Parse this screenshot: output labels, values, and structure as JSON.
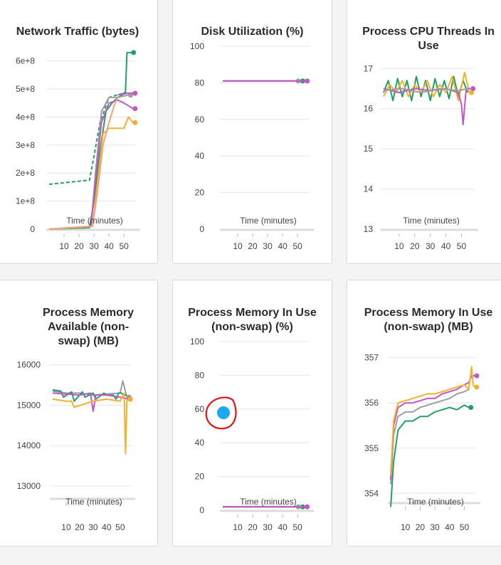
{
  "colors": {
    "green": "#22a063",
    "gray": "#9e9e9e",
    "purple": "#c357c7",
    "orange": "#f0b22e",
    "salmon": "#f2a47c",
    "grid": "#e6e6e6",
    "annotation_dot": "#1aa9f0",
    "annotation_circle": "#e1141b"
  },
  "chart_data": [
    {
      "type": "line",
      "title": "Network Traffic (bytes)",
      "xlabel": "Time (minutes)",
      "ylabel": "",
      "xlim": [
        0,
        58
      ],
      "ylim": [
        0,
        650000000
      ],
      "xticks": [
        10,
        20,
        30,
        40,
        50
      ],
      "yticks": [
        0,
        100000000,
        200000000,
        300000000,
        400000000,
        500000000,
        600000000
      ],
      "ytick_labels": [
        "0",
        "1e+8",
        "2e+8",
        "3e+8",
        "4e+8",
        "5e+8",
        "6e+8"
      ],
      "series": [
        {
          "color": "green",
          "x": [
            0,
            27,
            30,
            34,
            38,
            42,
            46,
            49,
            51,
            52,
            55
          ],
          "y": [
            0,
            5000000,
            100000000,
            280000000,
            420000000,
            450000000,
            470000000,
            480000000,
            490000000,
            630000000,
            630000000
          ],
          "end_marker": true
        },
        {
          "color": "green",
          "dashed": true,
          "x": [
            0,
            27,
            30,
            34,
            40,
            46,
            50,
            53
          ],
          "y": [
            160000000,
            175000000,
            260000000,
            380000000,
            470000000,
            480000000,
            485000000,
            485000000
          ]
        },
        {
          "color": "gray",
          "x": [
            0,
            28,
            31,
            35,
            40,
            46,
            50,
            53
          ],
          "y": [
            0,
            10000000,
            200000000,
            420000000,
            470000000,
            470000000,
            475000000,
            478000000
          ],
          "end_marker": true
        },
        {
          "color": "purple",
          "x": [
            0,
            28,
            31,
            35,
            40,
            46,
            50,
            53,
            56
          ],
          "y": [
            0,
            10000000,
            180000000,
            380000000,
            450000000,
            460000000,
            450000000,
            440000000,
            430000000
          ],
          "end_marker": true
        },
        {
          "color": "purple",
          "x": [
            46,
            50,
            53,
            56
          ],
          "y": [
            480000000,
            482000000,
            485000000,
            485000000
          ],
          "end_marker": true
        },
        {
          "color": "orange",
          "x": [
            0,
            29,
            32,
            36,
            40,
            46,
            50,
            53,
            56
          ],
          "y": [
            0,
            10000000,
            150000000,
            340000000,
            360000000,
            360000000,
            360000000,
            400000000,
            380000000
          ],
          "end_marker": true
        },
        {
          "color": "salmon",
          "x": [
            0,
            29,
            32,
            36,
            40,
            44,
            46
          ],
          "y": [
            0,
            10000000,
            120000000,
            300000000,
            380000000,
            450000000,
            470000000
          ]
        }
      ]
    },
    {
      "type": "line",
      "title": "Disk Utilization (%)",
      "xlabel": "Time (minutes)",
      "ylabel": "",
      "xlim": [
        0,
        58
      ],
      "ylim": [
        0,
        100
      ],
      "xticks": [
        10,
        20,
        30,
        40,
        50
      ],
      "yticks": [
        0,
        20,
        40,
        60,
        80,
        100
      ],
      "ytick_labels": [
        "0",
        "20",
        "40",
        "60",
        "80",
        "100"
      ],
      "series": [
        {
          "color": "green",
          "x": [
            0,
            52
          ],
          "y": [
            81,
            81
          ],
          "end_marker": true
        },
        {
          "color": "gray",
          "x": [
            0,
            49
          ],
          "y": [
            81,
            81
          ],
          "end_marker": true
        },
        {
          "color": "purple",
          "x": [
            0,
            55
          ],
          "y": [
            81,
            81
          ],
          "end_marker": true
        }
      ]
    },
    {
      "type": "line",
      "title": "Process CPU Threads In Use",
      "xlabel": "Time (minutes)",
      "ylabel": "",
      "xlim": [
        0,
        58
      ],
      "ylim": [
        13,
        17.2
      ],
      "xticks": [
        10,
        20,
        30,
        40,
        50
      ],
      "yticks": [
        13,
        14,
        15,
        16,
        17
      ],
      "ytick_labels": [
        "13",
        "14",
        "15",
        "16",
        "17"
      ],
      "series": [
        {
          "color": "green",
          "x": [
            0,
            3,
            6,
            9,
            12,
            15,
            18,
            21,
            24,
            27,
            30,
            33,
            36,
            39,
            42,
            45,
            48,
            51,
            54
          ],
          "y": [
            16.4,
            16.7,
            16.2,
            16.75,
            16.3,
            16.7,
            16.2,
            16.8,
            16.3,
            16.7,
            16.2,
            16.75,
            16.3,
            16.7,
            16.25,
            16.8,
            16.3,
            16.7,
            16.4
          ]
        },
        {
          "color": "orange",
          "x": [
            0,
            4,
            8,
            12,
            16,
            20,
            24,
            28,
            32,
            36,
            40,
            44,
            48,
            52,
            55
          ],
          "y": [
            16.3,
            16.6,
            16.4,
            16.7,
            16.3,
            16.6,
            16.4,
            16.7,
            16.3,
            16.6,
            16.4,
            16.8,
            16.2,
            16.9,
            16.4
          ],
          "end_marker": true
        },
        {
          "color": "purple",
          "x": [
            0,
            10,
            20,
            30,
            40,
            48,
            50,
            51,
            53,
            56
          ],
          "y": [
            16.5,
            16.4,
            16.5,
            16.45,
            16.5,
            16.4,
            16.1,
            15.6,
            16.5,
            16.5
          ],
          "end_marker": true
        },
        {
          "color": "gray",
          "x": [
            0,
            12,
            24,
            36,
            48,
            54
          ],
          "y": [
            16.45,
            16.5,
            16.4,
            16.5,
            16.45,
            16.5
          ]
        }
      ]
    },
    {
      "type": "line",
      "title": "Process Memory Available (non-swap) (MB)",
      "xlabel": "Time (minutes)",
      "ylabel": "",
      "xlim": [
        0,
        58
      ],
      "ylim": [
        12700,
        16400
      ],
      "xticks": [
        10,
        20,
        30,
        40,
        50
      ],
      "yticks": [
        13000,
        14000,
        15000,
        16000
      ],
      "ytick_labels": [
        "13000",
        "14000",
        "15000",
        "16000"
      ],
      "series": [
        {
          "color": "gray",
          "x": [
            0,
            10,
            20,
            30,
            40,
            50,
            52,
            55
          ],
          "y": [
            15350,
            15300,
            15300,
            15250,
            15280,
            15300,
            15600,
            15200
          ],
          "end_marker": true
        },
        {
          "color": "green",
          "x": [
            0,
            6,
            8,
            14,
            16,
            22,
            24,
            30,
            32,
            38,
            40,
            45,
            47,
            49,
            51,
            53,
            55
          ],
          "y": [
            15380,
            15350,
            15200,
            15330,
            15100,
            15330,
            15200,
            15300,
            15150,
            15300,
            15250,
            15250,
            15150,
            15300,
            15300,
            15250,
            15250
          ]
        },
        {
          "color": "purple",
          "x": [
            0,
            20,
            28,
            30,
            32,
            40,
            50,
            56
          ],
          "y": [
            15300,
            15250,
            15300,
            14850,
            15250,
            15250,
            15200,
            15150
          ],
          "end_marker": true
        },
        {
          "color": "orange",
          "x": [
            0,
            10,
            14,
            16,
            30,
            40,
            50,
            53,
            54,
            55,
            56
          ],
          "y": [
            15150,
            15100,
            15100,
            14950,
            15100,
            15150,
            15100,
            15300,
            13800,
            15100,
            15150
          ],
          "end_marker": true
        }
      ]
    },
    {
      "type": "line",
      "title": "Process Memory In Use (non-swap) (%)",
      "xlabel": "Time (minutes)",
      "ylabel": "",
      "xlim": [
        0,
        58
      ],
      "ylim": [
        0,
        100
      ],
      "xticks": [
        10,
        20,
        30,
        40,
        50
      ],
      "yticks": [
        0,
        20,
        40,
        60,
        80,
        100
      ],
      "ytick_labels": [
        "0",
        "20",
        "40",
        "60",
        "80",
        "100"
      ],
      "series": [
        {
          "color": "green",
          "x": [
            0,
            52
          ],
          "y": [
            2,
            2
          ],
          "end_marker": true
        },
        {
          "color": "gray",
          "x": [
            0,
            49
          ],
          "y": [
            2,
            2
          ],
          "end_marker": true
        },
        {
          "color": "purple",
          "x": [
            0,
            55
          ],
          "y": [
            2,
            2
          ],
          "end_marker": true
        }
      ]
    },
    {
      "type": "line",
      "title": "Process Memory In Use (non-swap) (MB)",
      "xlabel": "Time (minutes)",
      "ylabel": "",
      "xlim": [
        0,
        58
      ],
      "ylim": [
        353.8,
        357.2
      ],
      "xticks": [
        10,
        20,
        30,
        40,
        50
      ],
      "yticks": [
        354,
        355,
        356,
        357
      ],
      "ytick_labels": [
        "354",
        "355",
        "356",
        "357"
      ],
      "series": [
        {
          "color": "green",
          "x": [
            0,
            2,
            5,
            10,
            15,
            20,
            25,
            30,
            35,
            40,
            45,
            50,
            53
          ],
          "y": [
            353.7,
            354.7,
            355.4,
            355.6,
            355.6,
            355.7,
            355.7,
            355.8,
            355.85,
            355.9,
            355.85,
            355.95,
            355.9
          ],
          "end_marker": true
        },
        {
          "color": "gray",
          "x": [
            0,
            2,
            5,
            10,
            15,
            20,
            25,
            30,
            35,
            40,
            45,
            50,
            53
          ],
          "y": [
            354.2,
            355.3,
            355.7,
            355.8,
            355.8,
            355.9,
            355.95,
            356.0,
            356.05,
            356.1,
            356.2,
            356.25,
            356.3
          ]
        },
        {
          "color": "purple",
          "x": [
            0,
            2,
            5,
            10,
            15,
            20,
            25,
            30,
            35,
            40,
            45,
            50,
            53,
            55,
            57
          ],
          "y": [
            354.3,
            355.5,
            355.9,
            356.0,
            356.0,
            356.05,
            356.1,
            356.1,
            356.2,
            356.25,
            356.3,
            356.4,
            356.45,
            356.6,
            356.6
          ],
          "end_marker": true
        },
        {
          "color": "orange",
          "x": [
            0,
            2,
            5,
            10,
            15,
            20,
            25,
            30,
            35,
            40,
            45,
            50,
            53,
            55,
            56,
            57
          ],
          "y": [
            354.4,
            355.6,
            356.0,
            356.05,
            356.1,
            356.15,
            356.2,
            356.2,
            356.25,
            356.3,
            356.35,
            356.4,
            356.3,
            356.8,
            356.4,
            356.35
          ],
          "end_marker": true
        }
      ]
    }
  ]
}
